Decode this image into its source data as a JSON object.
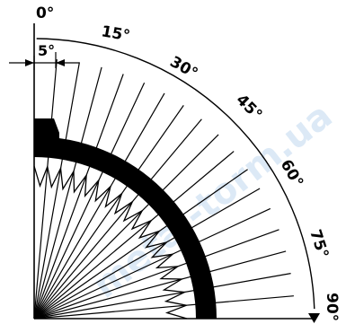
{
  "diagram": {
    "angle_step_deg": 5,
    "angle_range_deg": [
      0,
      90
    ],
    "step_annotation": "5°",
    "labels": [
      {
        "id": "a0",
        "text": "0°"
      },
      {
        "id": "a15",
        "text": "15°"
      },
      {
        "id": "a30",
        "text": "30°"
      },
      {
        "id": "a45",
        "text": "45°"
      },
      {
        "id": "a60",
        "text": "60°"
      },
      {
        "id": "a75",
        "text": "75°"
      },
      {
        "id": "a90",
        "text": "90°"
      }
    ],
    "colors": {
      "ink": "#000000",
      "background": "#ffffff",
      "watermark": "#9ec3e6"
    },
    "watermark_text": "metal-torm.ua"
  }
}
